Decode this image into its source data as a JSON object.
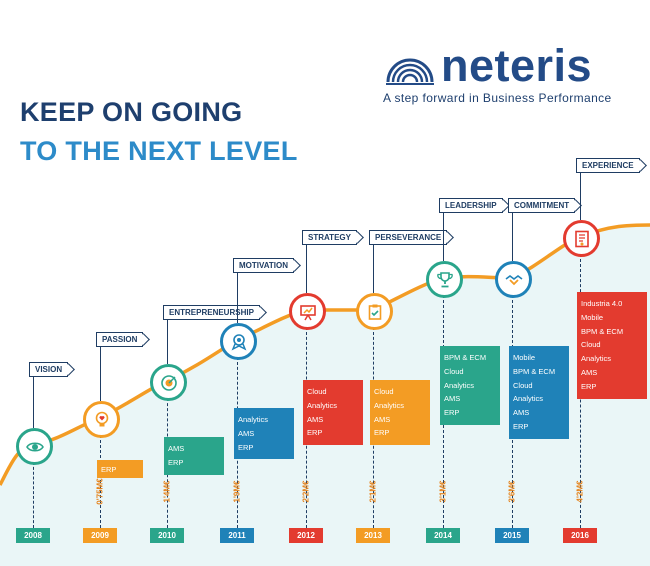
{
  "header": {
    "line1": "KEEP ON GOING",
    "line2": "TO THE NEXT LEVEL",
    "color_line1": "#1e3f6e",
    "color_line2": "#2d8bc9"
  },
  "logo": {
    "name": "neteris",
    "tagline": "A step forward in Business Performance",
    "color": "#234b87"
  },
  "colors": {
    "green": "#2aa58b",
    "orange": "#f39c24",
    "blue": "#1f82b8",
    "red": "#e33b2f",
    "curve": "#f39c24",
    "fill": "#eaf6f7"
  },
  "milestones": [
    {
      "label": "VISION",
      "year": "2008",
      "revenue": "",
      "items": [],
      "icon": "eye-icon",
      "color": "#2aa58b"
    },
    {
      "label": "PASSION",
      "year": "2009",
      "revenue": "0'75M€",
      "items": [
        "ERP"
      ],
      "icon": "lightbulb-heart-icon",
      "color": "#f39c24"
    },
    {
      "label": "ENTREPRENEURSHIP",
      "year": "2010",
      "revenue": "1'4M€",
      "items": [
        "AMS",
        "ERP"
      ],
      "icon": "target-icon",
      "color": "#2aa58b"
    },
    {
      "label": "MOTIVATION",
      "year": "2011",
      "revenue": "1'9M€",
      "items": [
        "Analytics",
        "AMS",
        "ERP"
      ],
      "icon": "medal-icon",
      "color": "#1f82b8"
    },
    {
      "label": "STRATEGY",
      "year": "2012",
      "revenue": "2'2M€",
      "items": [
        "Cloud",
        "Analytics",
        "AMS",
        "ERP"
      ],
      "icon": "presentation-board-icon",
      "color": "#e33b2f"
    },
    {
      "label": "PERSEVERANCE",
      "year": "2013",
      "revenue": "2'1M€",
      "items": [
        "Cloud",
        "Analytics",
        "AMS",
        "ERP"
      ],
      "icon": "clipboard-icon",
      "color": "#f39c24"
    },
    {
      "label": "LEADERSHIP",
      "year": "2014",
      "revenue": "3'1M€",
      "items": [
        "BPM & ECM",
        "Cloud",
        "Analytics",
        "AMS",
        "ERP"
      ],
      "icon": "trophy-icon",
      "color": "#2aa58b"
    },
    {
      "label": "COMMITMENT",
      "year": "2015",
      "revenue": "3'6M€",
      "items": [
        "Mobile",
        "BPM & ECM",
        "Cloud",
        "Analytics",
        "AMS",
        "ERP"
      ],
      "icon": "handshake-icon",
      "color": "#1f82b8"
    },
    {
      "label": "EXPERIENCE",
      "year": "2016",
      "revenue": "4'2M€",
      "items": [
        "Industria 4.0",
        "Mobile",
        "BPM & ECM",
        "Cloud",
        "Analytics",
        "AMS",
        "ERP"
      ],
      "icon": "certificate-icon",
      "color": "#e33b2f"
    }
  ]
}
